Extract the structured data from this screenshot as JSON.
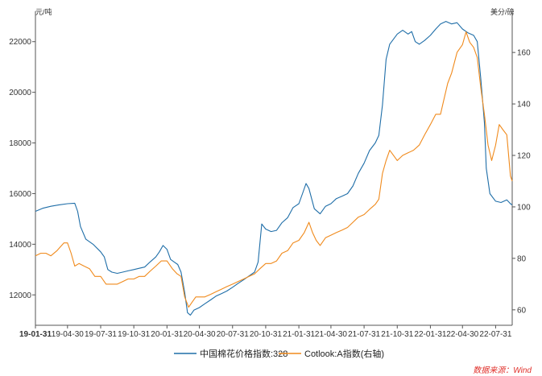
{
  "chart_data": {
    "type": "line",
    "title": "",
    "left_axis_unit": "元/吨",
    "right_axis_unit": "美分/磅",
    "x_ticks": [
      "19-01-31",
      "19-04-30",
      "19-07-31",
      "19-10-31",
      "20-01-31",
      "20-04-30",
      "20-07-31",
      "20-10-31",
      "21-01-31",
      "21-04-30",
      "21-07-31",
      "21-10-31",
      "22-01-31",
      "22-04-30",
      "22-07-31"
    ],
    "x_range": [
      "2019-01-31",
      "2022-09-15"
    ],
    "y_left_ticks": [
      12000,
      14000,
      16000,
      18000,
      20000,
      22000
    ],
    "y_left_range": [
      10800,
      23200
    ],
    "y_right_ticks": [
      60,
      80,
      100,
      120,
      140,
      160
    ],
    "y_right_range": [
      54,
      176
    ],
    "grid": false,
    "legend_position": "bottom",
    "source_note": "数据来源：Wind",
    "colors": {
      "series_1": "#1f6ea8",
      "series_2": "#f08a1c"
    },
    "series": [
      {
        "name": "中国棉花价格指数:328",
        "axis": "left",
        "points": [
          [
            "2019-01-31",
            15300
          ],
          [
            "2019-02-20",
            15420
          ],
          [
            "2019-03-15",
            15500
          ],
          [
            "2019-04-05",
            15550
          ],
          [
            "2019-04-30",
            15600
          ],
          [
            "2019-05-20",
            15620
          ],
          [
            "2019-05-28",
            15300
          ],
          [
            "2019-06-05",
            14700
          ],
          [
            "2019-06-20",
            14200
          ],
          [
            "2019-07-10",
            14000
          ],
          [
            "2019-07-31",
            13700
          ],
          [
            "2019-08-10",
            13500
          ],
          [
            "2019-08-20",
            13000
          ],
          [
            "2019-08-31",
            12900
          ],
          [
            "2019-09-15",
            12850
          ],
          [
            "2019-09-30",
            12900
          ],
          [
            "2019-10-15",
            12950
          ],
          [
            "2019-10-31",
            13000
          ],
          [
            "2019-11-15",
            13050
          ],
          [
            "2019-11-30",
            13100
          ],
          [
            "2019-12-15",
            13300
          ],
          [
            "2019-12-31",
            13500
          ],
          [
            "2020-01-10",
            13700
          ],
          [
            "2020-01-20",
            13950
          ],
          [
            "2020-01-31",
            13800
          ],
          [
            "2020-02-10",
            13400
          ],
          [
            "2020-02-20",
            13300
          ],
          [
            "2020-03-01",
            13200
          ],
          [
            "2020-03-10",
            12900
          ],
          [
            "2020-03-20",
            12100
          ],
          [
            "2020-03-28",
            11300
          ],
          [
            "2020-04-05",
            11200
          ],
          [
            "2020-04-15",
            11400
          ],
          [
            "2020-04-30",
            11500
          ],
          [
            "2020-05-15",
            11650
          ],
          [
            "2020-05-31",
            11800
          ],
          [
            "2020-06-15",
            11950
          ],
          [
            "2020-06-30",
            12050
          ],
          [
            "2020-07-15",
            12150
          ],
          [
            "2020-07-31",
            12300
          ],
          [
            "2020-08-15",
            12450
          ],
          [
            "2020-08-31",
            12600
          ],
          [
            "2020-09-15",
            12750
          ],
          [
            "2020-09-30",
            12900
          ],
          [
            "2020-10-10",
            13300
          ],
          [
            "2020-10-20",
            14800
          ],
          [
            "2020-10-31",
            14600
          ],
          [
            "2020-11-15",
            14500
          ],
          [
            "2020-11-30",
            14550
          ],
          [
            "2020-12-15",
            14850
          ],
          [
            "2020-12-31",
            15050
          ],
          [
            "2021-01-15",
            15450
          ],
          [
            "2021-01-31",
            15600
          ],
          [
            "2021-02-10",
            16000
          ],
          [
            "2021-02-20",
            16400
          ],
          [
            "2021-02-28",
            16200
          ],
          [
            "2021-03-15",
            15400
          ],
          [
            "2021-03-31",
            15200
          ],
          [
            "2021-04-15",
            15500
          ],
          [
            "2021-04-30",
            15600
          ],
          [
            "2021-05-15",
            15800
          ],
          [
            "2021-05-31",
            15900
          ],
          [
            "2021-06-15",
            16000
          ],
          [
            "2021-06-30",
            16300
          ],
          [
            "2021-07-15",
            16800
          ],
          [
            "2021-07-31",
            17200
          ],
          [
            "2021-08-15",
            17700
          ],
          [
            "2021-08-31",
            18000
          ],
          [
            "2021-09-10",
            18300
          ],
          [
            "2021-09-20",
            19500
          ],
          [
            "2021-09-30",
            21300
          ],
          [
            "2021-10-10",
            21900
          ],
          [
            "2021-10-31",
            22300
          ],
          [
            "2021-11-15",
            22450
          ],
          [
            "2021-11-30",
            22300
          ],
          [
            "2021-12-10",
            22400
          ],
          [
            "2021-12-20",
            22000
          ],
          [
            "2021-12-31",
            21900
          ],
          [
            "2022-01-15",
            22050
          ],
          [
            "2022-01-31",
            22250
          ],
          [
            "2022-02-15",
            22500
          ],
          [
            "2022-02-28",
            22700
          ],
          [
            "2022-03-15",
            22800
          ],
          [
            "2022-03-31",
            22700
          ],
          [
            "2022-04-15",
            22750
          ],
          [
            "2022-04-30",
            22500
          ],
          [
            "2022-05-15",
            22350
          ],
          [
            "2022-05-31",
            22250
          ],
          [
            "2022-06-10",
            22000
          ],
          [
            "2022-06-20",
            20500
          ],
          [
            "2022-06-30",
            18800
          ],
          [
            "2022-07-05",
            17000
          ],
          [
            "2022-07-15",
            16000
          ],
          [
            "2022-07-31",
            15700
          ],
          [
            "2022-08-15",
            15650
          ],
          [
            "2022-08-31",
            15750
          ],
          [
            "2022-09-10",
            15600
          ],
          [
            "2022-09-15",
            15550
          ]
        ]
      },
      {
        "name": "Cotlook:A指数(右轴)",
        "axis": "right",
        "points": [
          [
            "2019-01-31",
            81
          ],
          [
            "2019-02-15",
            82
          ],
          [
            "2019-03-01",
            82
          ],
          [
            "2019-03-15",
            81
          ],
          [
            "2019-04-01",
            83
          ],
          [
            "2019-04-20",
            86
          ],
          [
            "2019-04-30",
            86
          ],
          [
            "2019-05-10",
            82
          ],
          [
            "2019-05-20",
            77
          ],
          [
            "2019-06-01",
            78
          ],
          [
            "2019-06-15",
            77
          ],
          [
            "2019-06-30",
            76
          ],
          [
            "2019-07-15",
            73
          ],
          [
            "2019-07-31",
            73
          ],
          [
            "2019-08-15",
            70
          ],
          [
            "2019-08-31",
            70
          ],
          [
            "2019-09-15",
            70
          ],
          [
            "2019-09-30",
            71
          ],
          [
            "2019-10-15",
            72
          ],
          [
            "2019-10-31",
            72
          ],
          [
            "2019-11-15",
            73
          ],
          [
            "2019-11-30",
            73
          ],
          [
            "2019-12-15",
            75
          ],
          [
            "2019-12-31",
            77
          ],
          [
            "2020-01-15",
            79
          ],
          [
            "2020-01-31",
            79
          ],
          [
            "2020-02-15",
            76
          ],
          [
            "2020-02-28",
            74
          ],
          [
            "2020-03-10",
            73
          ],
          [
            "2020-03-20",
            65
          ],
          [
            "2020-03-31",
            61
          ],
          [
            "2020-04-10",
            63
          ],
          [
            "2020-04-20",
            65
          ],
          [
            "2020-04-30",
            65
          ],
          [
            "2020-05-15",
            65
          ],
          [
            "2020-05-31",
            66
          ],
          [
            "2020-06-15",
            67
          ],
          [
            "2020-06-30",
            68
          ],
          [
            "2020-07-15",
            69
          ],
          [
            "2020-07-31",
            70
          ],
          [
            "2020-08-15",
            71
          ],
          [
            "2020-08-31",
            72
          ],
          [
            "2020-09-15",
            73
          ],
          [
            "2020-09-30",
            74
          ],
          [
            "2020-10-15",
            76
          ],
          [
            "2020-10-31",
            78
          ],
          [
            "2020-11-15",
            78
          ],
          [
            "2020-11-30",
            79
          ],
          [
            "2020-12-15",
            82
          ],
          [
            "2020-12-31",
            83
          ],
          [
            "2021-01-15",
            86
          ],
          [
            "2021-01-31",
            87
          ],
          [
            "2021-02-15",
            90
          ],
          [
            "2021-02-28",
            94
          ],
          [
            "2021-03-10",
            90
          ],
          [
            "2021-03-20",
            87
          ],
          [
            "2021-03-31",
            85
          ],
          [
            "2021-04-15",
            88
          ],
          [
            "2021-04-30",
            89
          ],
          [
            "2021-05-15",
            90
          ],
          [
            "2021-05-31",
            91
          ],
          [
            "2021-06-15",
            92
          ],
          [
            "2021-06-30",
            94
          ],
          [
            "2021-07-15",
            96
          ],
          [
            "2021-07-31",
            97
          ],
          [
            "2021-08-15",
            99
          ],
          [
            "2021-08-31",
            101
          ],
          [
            "2021-09-10",
            103
          ],
          [
            "2021-09-20",
            113
          ],
          [
            "2021-09-30",
            118
          ],
          [
            "2021-10-10",
            122
          ],
          [
            "2021-10-31",
            118
          ],
          [
            "2021-11-15",
            120
          ],
          [
            "2021-11-30",
            121
          ],
          [
            "2021-12-15",
            122
          ],
          [
            "2021-12-31",
            124
          ],
          [
            "2022-01-15",
            128
          ],
          [
            "2022-01-31",
            132
          ],
          [
            "2022-02-15",
            136
          ],
          [
            "2022-02-28",
            136
          ],
          [
            "2022-03-10",
            142
          ],
          [
            "2022-03-20",
            148
          ],
          [
            "2022-03-31",
            152
          ],
          [
            "2022-04-15",
            160
          ],
          [
            "2022-04-30",
            163
          ],
          [
            "2022-05-10",
            168
          ],
          [
            "2022-05-20",
            164
          ],
          [
            "2022-05-31",
            162
          ],
          [
            "2022-06-10",
            158
          ],
          [
            "2022-06-20",
            146
          ],
          [
            "2022-06-30",
            136
          ],
          [
            "2022-07-10",
            124
          ],
          [
            "2022-07-20",
            118
          ],
          [
            "2022-07-31",
            124
          ],
          [
            "2022-08-10",
            132
          ],
          [
            "2022-08-20",
            130
          ],
          [
            "2022-08-31",
            128
          ],
          [
            "2022-09-10",
            112
          ],
          [
            "2022-09-15",
            110
          ]
        ]
      }
    ]
  }
}
